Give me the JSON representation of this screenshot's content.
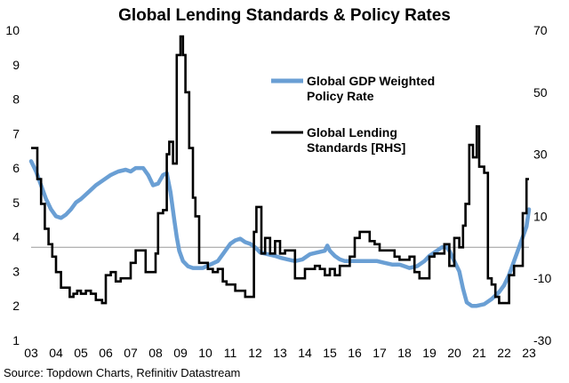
{
  "chart_data": {
    "type": "line",
    "title": "Global Lending Standards & Policy Rates",
    "source": "Source: Topdown Charts, Refinitiv Datastream",
    "x_tick_labels": [
      "03",
      "04",
      "05",
      "06",
      "07",
      "08",
      "09",
      "10",
      "11",
      "12",
      "13",
      "14",
      "15",
      "16",
      "17",
      "18",
      "19",
      "20",
      "21",
      "22",
      "23"
    ],
    "x_range": [
      2003.0,
      2023.0
    ],
    "left_axis": {
      "range": [
        1,
        10
      ],
      "ticks": [
        1,
        2,
        3,
        4,
        5,
        6,
        7,
        8,
        9,
        10
      ],
      "tick_labels": [
        "1",
        "2",
        "3",
        "4",
        "5",
        "6",
        "7",
        "8",
        "9",
        "10"
      ]
    },
    "right_axis": {
      "range": [
        -30,
        70
      ],
      "ticks": [
        -30,
        -10,
        10,
        30,
        50,
        70
      ],
      "tick_labels": [
        "-30",
        "-10",
        "10",
        "30",
        "50",
        "70"
      ]
    },
    "zero_line_rhs": 0,
    "colors": {
      "policy": "#6a9fd4",
      "lending": "#000000",
      "zero_line": "#9a9a9a"
    },
    "series": [
      {
        "name": "Global GDP Weighted Policy Rate",
        "legend_lines": [
          "Global GDP Weighted",
          "Policy Rate"
        ],
        "axis": "left",
        "x": [
          2003.0,
          2003.2,
          2003.4,
          2003.6,
          2003.8,
          2004.0,
          2004.2,
          2004.4,
          2004.6,
          2004.8,
          2005.0,
          2005.3,
          2005.6,
          2005.9,
          2006.2,
          2006.5,
          2006.8,
          2007.0,
          2007.2,
          2007.5,
          2007.7,
          2007.9,
          2008.1,
          2008.3,
          2008.45,
          2008.6,
          2008.75,
          2008.85,
          2008.95,
          2009.1,
          2009.3,
          2009.5,
          2009.7,
          2009.9,
          2010.2,
          2010.5,
          2010.8,
          2011.0,
          2011.2,
          2011.4,
          2011.6,
          2011.8,
          2012.0,
          2012.2,
          2012.5,
          2012.8,
          2013.0,
          2013.3,
          2013.6,
          2013.9,
          2014.2,
          2014.5,
          2014.8,
          2014.9,
          2015.0,
          2015.2,
          2015.4,
          2015.6,
          2015.8,
          2016.0,
          2016.3,
          2016.6,
          2016.9,
          2017.2,
          2017.5,
          2017.8,
          2018.0,
          2018.2,
          2018.5,
          2018.8,
          2019.0,
          2019.2,
          2019.5,
          2019.7,
          2019.8,
          2020.0,
          2020.2,
          2020.35,
          2020.5,
          2020.7,
          2020.9,
          2021.2,
          2021.5,
          2021.8,
          2022.0,
          2022.2,
          2022.4,
          2022.6,
          2022.8,
          2022.9,
          2023.0
        ],
        "y": [
          6.2,
          5.9,
          5.5,
          5.1,
          4.8,
          4.6,
          4.55,
          4.65,
          4.8,
          5.0,
          5.1,
          5.3,
          5.5,
          5.65,
          5.8,
          5.9,
          5.95,
          5.9,
          6.0,
          6.0,
          5.8,
          5.5,
          5.55,
          5.8,
          5.85,
          5.3,
          4.5,
          4.0,
          3.6,
          3.3,
          3.15,
          3.1,
          3.1,
          3.1,
          3.2,
          3.3,
          3.6,
          3.8,
          3.9,
          3.95,
          3.85,
          3.8,
          3.7,
          3.55,
          3.5,
          3.45,
          3.4,
          3.35,
          3.3,
          3.35,
          3.5,
          3.55,
          3.6,
          3.75,
          3.6,
          3.45,
          3.35,
          3.3,
          3.3,
          3.3,
          3.3,
          3.3,
          3.3,
          3.25,
          3.2,
          3.2,
          3.15,
          3.1,
          3.15,
          3.3,
          3.45,
          3.55,
          3.7,
          3.7,
          3.6,
          3.3,
          3.0,
          2.5,
          2.1,
          2.0,
          2.0,
          2.05,
          2.2,
          2.4,
          2.6,
          2.9,
          3.3,
          3.7,
          4.1,
          4.3,
          4.8
        ]
      },
      {
        "name": "Global Lending Standards [RHS]",
        "legend_lines": [
          "Global Lending",
          "Standards [RHS]"
        ],
        "axis": "right",
        "step": true,
        "x": [
          2003.0,
          2003.25,
          2003.4,
          2003.55,
          2003.7,
          2003.85,
          2004.0,
          2004.2,
          2004.4,
          2004.55,
          2004.7,
          2004.85,
          2005.0,
          2005.2,
          2005.4,
          2005.6,
          2005.75,
          2005.85,
          2006.0,
          2006.2,
          2006.4,
          2006.6,
          2006.8,
          2007.0,
          2007.2,
          2007.4,
          2007.6,
          2007.8,
          2008.0,
          2008.1,
          2008.3,
          2008.45,
          2008.55,
          2008.7,
          2008.85,
          2009.0,
          2009.1,
          2009.2,
          2009.35,
          2009.5,
          2009.6,
          2009.75,
          2009.9,
          2010.1,
          2010.3,
          2010.5,
          2010.7,
          2010.85,
          2011.0,
          2011.2,
          2011.4,
          2011.6,
          2011.8,
          2011.95,
          2012.05,
          2012.25,
          2012.4,
          2012.6,
          2012.8,
          2013.0,
          2013.2,
          2013.4,
          2013.6,
          2013.8,
          2014.0,
          2014.2,
          2014.4,
          2014.6,
          2014.8,
          2015.0,
          2015.2,
          2015.4,
          2015.6,
          2015.8,
          2016.0,
          2016.2,
          2016.4,
          2016.6,
          2016.8,
          2017.0,
          2017.2,
          2017.4,
          2017.6,
          2017.8,
          2018.0,
          2018.2,
          2018.4,
          2018.6,
          2018.8,
          2019.0,
          2019.2,
          2019.4,
          2019.6,
          2019.8,
          2020.0,
          2020.2,
          2020.35,
          2020.45,
          2020.6,
          2020.75,
          2020.9,
          2021.0,
          2021.2,
          2021.35,
          2021.5,
          2021.65,
          2021.8,
          2022.0,
          2022.2,
          2022.4,
          2022.6,
          2022.75,
          2022.9,
          2023.0
        ],
        "y": [
          32,
          22,
          14,
          6,
          1,
          -3,
          -8,
          -13,
          -13,
          -16,
          -15,
          -14,
          -15,
          -14,
          -15,
          -17,
          -17,
          -18,
          -9,
          -8,
          -11,
          -10,
          -10,
          -5,
          -1,
          -1,
          -8,
          -8,
          -2,
          11,
          12,
          30,
          34,
          27,
          62,
          68,
          62,
          50,
          32,
          16,
          10,
          -5,
          -5,
          -7,
          -8,
          -7,
          -11,
          -12,
          -12,
          -14,
          -14,
          -16,
          -16,
          5,
          13,
          -2,
          3,
          -2,
          2,
          -2,
          -1,
          -1,
          -10,
          -10,
          -7,
          -7,
          -6,
          -7,
          -9,
          -7,
          -9,
          -6,
          -6,
          -3,
          3,
          5,
          5,
          2,
          1,
          -1,
          -1,
          -1,
          -3,
          -4,
          -4,
          -3,
          -8,
          -10,
          -10,
          -3,
          -2,
          -2,
          1,
          -6,
          3,
          0,
          7,
          14,
          33,
          29,
          39,
          26,
          24,
          -10,
          -12,
          -16,
          -18,
          -18,
          -9,
          -6,
          -6,
          11,
          22,
          22
        ]
      }
    ]
  }
}
